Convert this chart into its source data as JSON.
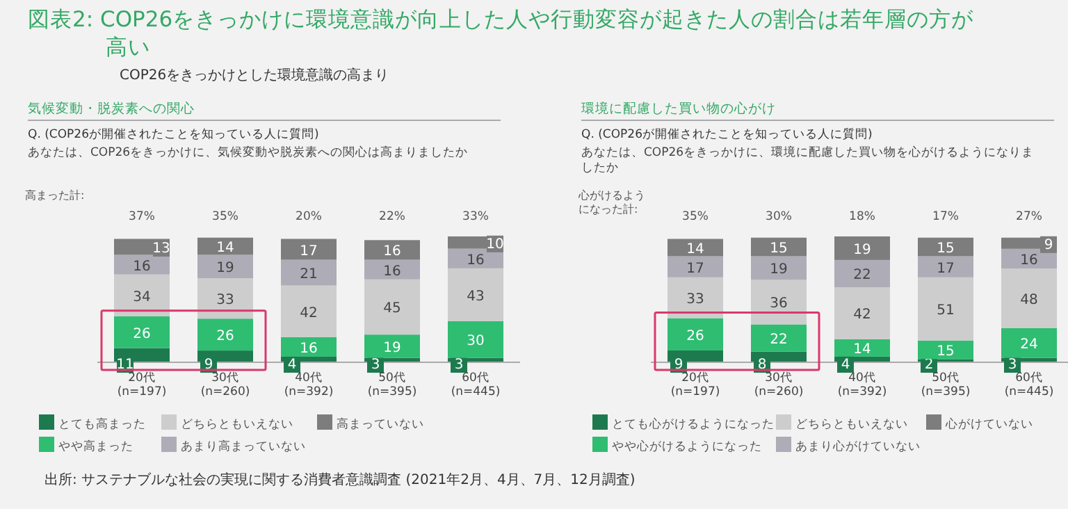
{
  "chart_data": [
    {
      "type": "other",
      "title": "図表2: COP26をきっかけに環境意識が向上した人や行動変容が起きた人の割合は若年層の方が高い",
      "subtitle": "COP26をきっかけとした環境意識の高まり",
      "annotations": [
        "出所: サステナブルな社会の実現に関する消費者意識調査 (2021年2月、4月、7月、12月調査)"
      ]
    },
    {
      "type": "bar",
      "stacked": true,
      "title": "気候変動・脱炭素への関心",
      "subtitle": "Q.  (COP26が開催されたことを知っている人に質問)",
      "annotations": [
        "あなたは、COP26をきっかけに、気候変動や脱炭素への関心は高まりましたか",
        "高まった計:",
        "37%",
        "35%",
        "20%",
        "22%",
        "33%"
      ],
      "categories": [
        "20代\n(n=197)",
        "30代\n(n=260)",
        "40代\n(n=392)",
        "50代\n(n=395)",
        "60代\n(n=445)"
      ],
      "data_labels": true,
      "legend": "bottom",
      "series": [
        {
          "name": "とても高まった",
          "color": "#1d7a4f",
          "values": [
            11,
            9,
            4,
            3,
            3
          ]
        },
        {
          "name": "やや高まった",
          "color": "#2fbd72",
          "values": [
            26,
            26,
            16,
            19,
            30
          ]
        },
        {
          "name": "どちらともいえない",
          "color": "#cdcdcd",
          "values": [
            34,
            33,
            42,
            45,
            43
          ]
        },
        {
          "name": "あまり高まっていない",
          "color": "#aeacb6",
          "values": [
            16,
            19,
            21,
            16,
            16
          ]
        },
        {
          "name": "高まっていない",
          "color": "#7d7d7d",
          "values": [
            13,
            14,
            17,
            16,
            10
          ]
        }
      ]
    },
    {
      "type": "bar",
      "stacked": true,
      "title": "環境に配慮した買い物の心がけ",
      "subtitle": "Q.  (COP26が開催されたことを知っている人に質問)",
      "annotations": [
        "あなたは、COP26をきっかけに、環境に配慮した買い物を心がけるようになりましたか",
        "心がけるようになった計:",
        "35%",
        "30%",
        "18%",
        "17%",
        "27%"
      ],
      "categories": [
        "20代\n(n=197)",
        "30代\n(n=260)",
        "40代\n(n=392)",
        "50代\n(n=395)",
        "60代\n(n=445)"
      ],
      "data_labels": true,
      "legend": "bottom",
      "series": [
        {
          "name": "とても心がけるようになった",
          "color": "#1d7a4f",
          "values": [
            9,
            8,
            4,
            2,
            3
          ]
        },
        {
          "name": "やや心がけるようになった",
          "color": "#2fbd72",
          "values": [
            26,
            22,
            14,
            15,
            24
          ]
        },
        {
          "name": "どちらともいえない",
          "color": "#cdcdcd",
          "values": [
            33,
            36,
            42,
            51,
            48
          ]
        },
        {
          "name": "あまり心がけていない",
          "color": "#aeacb6",
          "values": [
            17,
            19,
            22,
            17,
            16
          ]
        },
        {
          "name": "心がけていない",
          "color": "#7d7d7d",
          "values": [
            14,
            15,
            19,
            15,
            9
          ]
        }
      ]
    }
  ]
}
